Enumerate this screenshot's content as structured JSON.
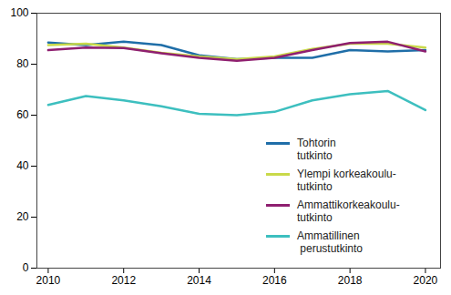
{
  "chart_data": {
    "type": "line",
    "x": [
      2010,
      2011,
      2012,
      2013,
      2014,
      2015,
      2016,
      2017,
      2018,
      2019,
      2020
    ],
    "series": [
      {
        "name": "Tohtorin\ntutkinto",
        "color": "#1f6ea8",
        "values": [
          88.5,
          87.5,
          88.8,
          87.5,
          83.5,
          82,
          82.5,
          82.5,
          85.5,
          85,
          85.5
        ]
      },
      {
        "name": "Ylempi korkeakoulu-\ntutkinto",
        "color": "#c9d94a",
        "values": [
          87.5,
          88,
          86.5,
          84.5,
          83,
          82,
          83,
          86,
          88,
          88,
          86.5
        ]
      },
      {
        "name": "Ammattikorkeakoulu-\ntutkinto",
        "color": "#8f1f70",
        "values": [
          85.5,
          86.5,
          86.3,
          84.3,
          82.5,
          81.3,
          82.5,
          85.5,
          88.3,
          88.8,
          85
        ]
      },
      {
        "name": "Ammatillinen\n perustutkinto",
        "color": "#3dbfbf",
        "values": [
          64,
          67.5,
          65.8,
          63.5,
          60.5,
          60,
          61.3,
          65.8,
          68.2,
          69.5,
          62
        ]
      }
    ],
    "xlim": [
      2009.7,
      2020.4
    ],
    "xticks": [
      2010,
      2012,
      2014,
      2016,
      2018,
      2020
    ],
    "ylim": [
      0,
      100
    ],
    "yticks": [
      0,
      20,
      40,
      60,
      80,
      100
    ],
    "grid": false,
    "legend": "lower right"
  }
}
